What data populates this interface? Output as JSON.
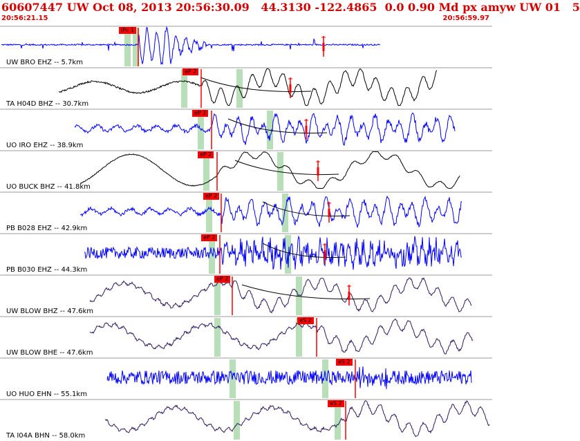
{
  "header": {
    "title": "60607447 UW Oct 08, 2013 20:56:30.09   44.3130 -122.4865  0.0 0.90 Md px amyw UW 01   5",
    "start_time": "20:56:21.15",
    "end_time": "20:56:59.97"
  },
  "colors": {
    "header_text": "#d40000",
    "pick": "#ff0000",
    "window_band": "#b8dfb8",
    "trace_blue": "#0000ff",
    "trace_black": "#000000",
    "trace_purple": "#2e1760",
    "separator": "#9a9a9a"
  },
  "traces": [
    {
      "label": "UW BRO EHZ -- 5.7km",
      "pick": "iPc 1",
      "color": "blue"
    },
    {
      "label": "TA H04D BHZ -- 30.7km",
      "pick": "eP 2",
      "color": "black"
    },
    {
      "label": "UO IRO EHZ -- 38.9km",
      "pick": "eP 2",
      "color": "blue"
    },
    {
      "label": "UO BUCK BHZ -- 41.8km",
      "pick": "eP 2",
      "color": "black"
    },
    {
      "label": "PB B028 EHZ -- 42.9km",
      "pick": "eP 2",
      "color": "blue"
    },
    {
      "label": "PB B030 EHZ -- 44.3km",
      "pick": "eP 2",
      "color": "blue"
    },
    {
      "label": "UW BLOW BHZ -- 47.6km",
      "pick": "eP 2",
      "color": "purple"
    },
    {
      "label": "UW BLOW BHE -- 47.6km",
      "pick": "eS 2",
      "color": "purple"
    },
    {
      "label": "UO HUO EHN -- 55.1km",
      "pick": "eS 2",
      "color": "blue"
    },
    {
      "label": "TA I04A BHN -- 58.0km",
      "pick": "eS 2",
      "color": "purple"
    }
  ]
}
